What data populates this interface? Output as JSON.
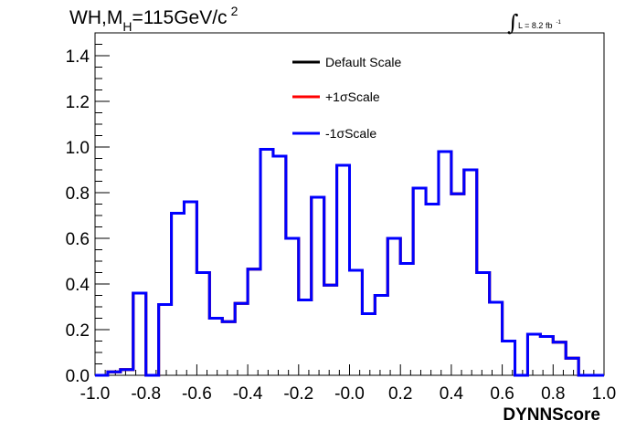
{
  "chart_data": {
    "type": "line",
    "title_main": "WH,M",
    "title_sub": "H",
    "title_rest": "=115GeV/c",
    "title_sup": "2",
    "lumi_label": "L = 8.2 fb",
    "lumi_sup": "-1",
    "xlabel": "DYNNScore",
    "ylabel": "",
    "xlim": [
      -1.0,
      1.0
    ],
    "ylim": [
      0,
      1.5
    ],
    "x_ticks": [
      "-1.0",
      "-0.8",
      "-0.6",
      "-0.4",
      "-0.2",
      "-0.0",
      "0.2",
      "0.4",
      "0.6",
      "0.8",
      "1.0"
    ],
    "y_ticks": [
      "0.0",
      "0.2",
      "0.4",
      "0.6",
      "0.8",
      "1.0",
      "1.2",
      "1.4"
    ],
    "bin_edges": [
      -1.0,
      -0.95,
      -0.9,
      -0.85,
      -0.8,
      -0.75,
      -0.7,
      -0.65,
      -0.6,
      -0.55,
      -0.5,
      -0.45,
      -0.4,
      -0.35,
      -0.3,
      -0.25,
      -0.2,
      -0.15,
      -0.1,
      -0.05,
      0.0,
      0.05,
      0.1,
      0.15,
      0.2,
      0.25,
      0.3,
      0.35,
      0.4,
      0.45,
      0.5,
      0.55,
      0.6,
      0.65,
      0.7,
      0.75,
      0.8,
      0.85,
      0.9,
      0.95,
      1.0
    ],
    "series": [
      {
        "name": "Default Scale",
        "color": "#000000",
        "values": [
          0.0,
          0.015,
          0.025,
          0.36,
          0.0,
          0.31,
          0.71,
          0.76,
          0.45,
          0.25,
          0.235,
          0.315,
          0.465,
          0.99,
          0.96,
          0.6,
          0.33,
          0.78,
          0.395,
          0.92,
          0.46,
          0.27,
          0.35,
          0.6,
          0.49,
          0.82,
          0.75,
          0.98,
          0.795,
          0.9,
          0.45,
          0.32,
          0.15,
          0.0,
          0.18,
          0.17,
          0.145,
          0.075,
          0.0,
          0.0
        ]
      },
      {
        "name": "+1σScale",
        "color": "#ff0000",
        "values": [
          0.0,
          0.015,
          0.025,
          0.36,
          0.0,
          0.31,
          0.71,
          0.76,
          0.45,
          0.25,
          0.235,
          0.315,
          0.465,
          0.99,
          0.96,
          0.6,
          0.33,
          0.78,
          0.395,
          0.92,
          0.46,
          0.27,
          0.35,
          0.6,
          0.49,
          0.82,
          0.75,
          0.98,
          0.795,
          0.9,
          0.45,
          0.32,
          0.15,
          0.0,
          0.18,
          0.17,
          0.145,
          0.075,
          0.0,
          0.0
        ]
      },
      {
        "name": "-1σScale",
        "color": "#0000ff",
        "values": [
          0.0,
          0.015,
          0.025,
          0.36,
          0.0,
          0.31,
          0.71,
          0.76,
          0.45,
          0.25,
          0.235,
          0.315,
          0.465,
          0.99,
          0.96,
          0.6,
          0.33,
          0.78,
          0.395,
          0.92,
          0.46,
          0.27,
          0.35,
          0.6,
          0.49,
          0.82,
          0.75,
          0.98,
          0.795,
          0.9,
          0.45,
          0.32,
          0.15,
          0.0,
          0.18,
          0.17,
          0.145,
          0.075,
          0.0,
          0.0
        ]
      }
    ],
    "grid": false,
    "legend_position": "top-center"
  }
}
